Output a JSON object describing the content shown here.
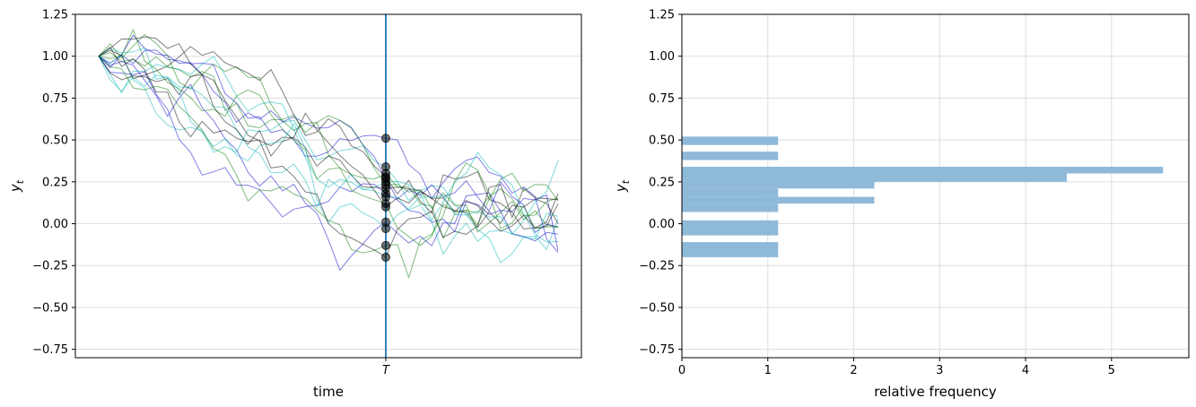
{
  "chart_data": [
    {
      "type": "line",
      "xlabel": "time",
      "ylabel": "y_t",
      "ylabel_main": "y",
      "ylabel_sub": "t",
      "ylim": [
        -0.8,
        1.25
      ],
      "yticks": [
        -0.75,
        -0.5,
        -0.25,
        0.0,
        0.25,
        0.5,
        0.75,
        1.0,
        1.25
      ],
      "ytick_labels": [
        "−0.75",
        "−0.50",
        "−0.25",
        "0.00",
        "0.25",
        "0.50",
        "0.75",
        "1.00",
        "1.25"
      ],
      "xtick_label": "T",
      "grid": "horizontal",
      "line_colors": [
        "#0000cc",
        "#00b5b5",
        "#007a00",
        "#000000"
      ],
      "vline_color": "#1f77b4",
      "n_steps": 40,
      "T_index": 25,
      "values_at_T": [
        0.51,
        0.34,
        0.3,
        0.28,
        0.27,
        0.25,
        0.23,
        0.21,
        0.18,
        0.16,
        0.12,
        0.1,
        0.01,
        -0.03,
        -0.13,
        -0.2
      ],
      "marker_color": "#000000"
    },
    {
      "type": "bar",
      "orientation": "horizontal",
      "xlabel": "relative frequency",
      "ylabel": "y_t",
      "ylabel_main": "y",
      "ylabel_sub": "t",
      "ylim": [
        -0.8,
        1.25
      ],
      "xlim": [
        0,
        5.9
      ],
      "yticks": [
        -0.75,
        -0.5,
        -0.25,
        0.0,
        0.25,
        0.5,
        0.75,
        1.0,
        1.25
      ],
      "ytick_labels": [
        "−0.75",
        "−0.50",
        "−0.25",
        "0.00",
        "0.25",
        "0.50",
        "0.75",
        "1.00",
        "1.25"
      ],
      "xticks": [
        0,
        1,
        2,
        3,
        4,
        5
      ],
      "xtick_labels": [
        "0",
        "1",
        "2",
        "3",
        "4",
        "5"
      ],
      "grid": "both",
      "bar_color": "#8fb9d9",
      "bins": [
        {
          "low": -0.2,
          "high": -0.11,
          "value": 1.12
        },
        {
          "low": -0.11,
          "high": -0.07,
          "value": 0.0
        },
        {
          "low": -0.07,
          "high": 0.02,
          "value": 1.12
        },
        {
          "low": 0.02,
          "high": 0.07,
          "value": 0.0
        },
        {
          "low": 0.07,
          "high": 0.12,
          "value": 1.12
        },
        {
          "low": 0.12,
          "high": 0.16,
          "value": 2.24
        },
        {
          "low": 0.16,
          "high": 0.21,
          "value": 1.12
        },
        {
          "low": 0.21,
          "high": 0.25,
          "value": 2.24
        },
        {
          "low": 0.25,
          "high": 0.3,
          "value": 4.48
        },
        {
          "low": 0.3,
          "high": 0.34,
          "value": 5.6
        },
        {
          "low": 0.34,
          "high": 0.38,
          "value": 0.0
        },
        {
          "low": 0.38,
          "high": 0.43,
          "value": 1.12
        },
        {
          "low": 0.43,
          "high": 0.47,
          "value": 0.0
        },
        {
          "low": 0.47,
          "high": 0.52,
          "value": 1.12
        }
      ]
    }
  ]
}
